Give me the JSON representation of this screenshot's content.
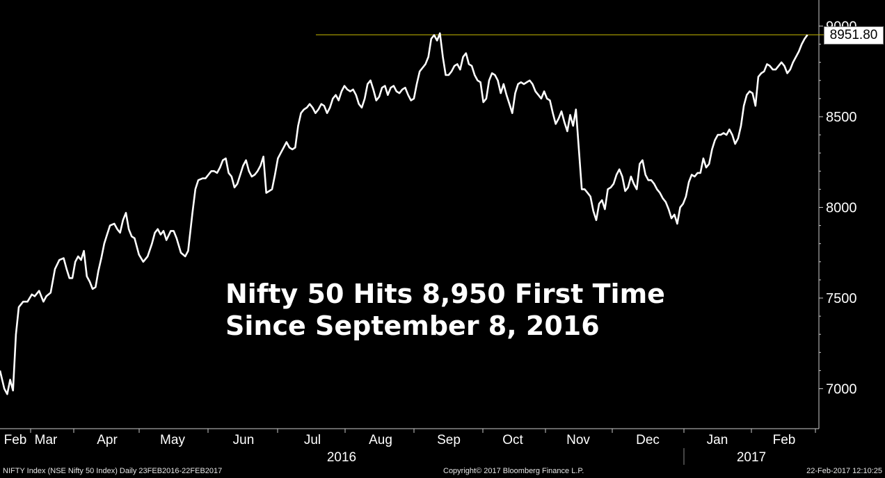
{
  "chart_data": {
    "type": "line",
    "y_ticks": [
      7000,
      7500,
      8000,
      8500,
      9000
    ],
    "ylim": [
      6800,
      9100
    ],
    "x_month_labels": [
      "Feb",
      "Mar",
      "Apr",
      "May",
      "Jun",
      "Jul",
      "Aug",
      "Sep",
      "Oct",
      "Nov",
      "Dec",
      "Jan",
      "Feb"
    ],
    "year_labels": [
      "2016",
      "2017"
    ],
    "last_value_label": "8951.80",
    "reference_line_value": 8951.8,
    "series": [
      {
        "values": [
          [
            0,
            7100
          ],
          [
            0.3,
            7000
          ],
          [
            0.5,
            6970
          ],
          [
            0.7,
            7050
          ],
          [
            0.9,
            6990
          ],
          [
            1.1,
            7300
          ],
          [
            1.3,
            7450
          ],
          [
            1.6,
            7480
          ],
          [
            1.9,
            7480
          ],
          [
            2.2,
            7520
          ],
          [
            2.4,
            7510
          ],
          [
            2.7,
            7540
          ],
          [
            3.0,
            7480
          ],
          [
            3.2,
            7510
          ],
          [
            3.5,
            7530
          ],
          [
            3.8,
            7660
          ],
          [
            4.1,
            7710
          ],
          [
            4.4,
            7720
          ],
          [
            4.6,
            7660
          ],
          [
            4.8,
            7610
          ],
          [
            5.0,
            7610
          ],
          [
            5.2,
            7700
          ],
          [
            5.4,
            7730
          ],
          [
            5.6,
            7710
          ],
          [
            5.8,
            7760
          ],
          [
            6.0,
            7620
          ],
          [
            6.2,
            7590
          ],
          [
            6.4,
            7550
          ],
          [
            6.6,
            7560
          ],
          [
            6.8,
            7650
          ],
          [
            7.0,
            7720
          ],
          [
            7.2,
            7800
          ],
          [
            7.4,
            7850
          ],
          [
            7.6,
            7900
          ],
          [
            7.9,
            7910
          ],
          [
            8.1,
            7880
          ],
          [
            8.3,
            7860
          ],
          [
            8.5,
            7930
          ],
          [
            8.7,
            7970
          ],
          [
            8.9,
            7880
          ],
          [
            9.1,
            7840
          ],
          [
            9.3,
            7830
          ],
          [
            9.6,
            7740
          ],
          [
            9.9,
            7700
          ],
          [
            10.2,
            7730
          ],
          [
            10.5,
            7800
          ],
          [
            10.7,
            7860
          ],
          [
            10.9,
            7880
          ],
          [
            11.1,
            7850
          ],
          [
            11.3,
            7870
          ],
          [
            11.5,
            7820
          ],
          [
            11.8,
            7870
          ],
          [
            12.0,
            7870
          ],
          [
            12.2,
            7830
          ],
          [
            12.5,
            7750
          ],
          [
            12.8,
            7730
          ],
          [
            13.0,
            7760
          ],
          [
            13.3,
            7970
          ],
          [
            13.5,
            8100
          ],
          [
            13.7,
            8150
          ],
          [
            14.0,
            8160
          ],
          [
            14.2,
            8160
          ],
          [
            14.4,
            8180
          ],
          [
            14.6,
            8200
          ],
          [
            14.8,
            8200
          ],
          [
            15.0,
            8190
          ],
          [
            15.2,
            8220
          ],
          [
            15.4,
            8260
          ],
          [
            15.6,
            8270
          ],
          [
            15.8,
            8190
          ],
          [
            16.0,
            8170
          ],
          [
            16.2,
            8110
          ],
          [
            16.4,
            8130
          ],
          [
            16.6,
            8180
          ],
          [
            16.8,
            8230
          ],
          [
            17.0,
            8260
          ],
          [
            17.2,
            8200
          ],
          [
            17.4,
            8170
          ],
          [
            17.6,
            8180
          ],
          [
            17.8,
            8200
          ],
          [
            18.0,
            8230
          ],
          [
            18.2,
            8280
          ],
          [
            18.4,
            8080
          ],
          [
            18.6,
            8090
          ],
          [
            18.8,
            8100
          ],
          [
            19.0,
            8180
          ],
          [
            19.2,
            8270
          ],
          [
            19.4,
            8300
          ],
          [
            19.6,
            8330
          ],
          [
            19.8,
            8360
          ],
          [
            20.0,
            8330
          ],
          [
            20.2,
            8320
          ],
          [
            20.4,
            8330
          ],
          [
            20.6,
            8450
          ],
          [
            20.8,
            8520
          ],
          [
            21.0,
            8540
          ],
          [
            21.2,
            8550
          ],
          [
            21.4,
            8570
          ],
          [
            21.6,
            8550
          ],
          [
            21.8,
            8520
          ],
          [
            22.0,
            8540
          ],
          [
            22.2,
            8570
          ],
          [
            22.4,
            8560
          ],
          [
            22.6,
            8520
          ],
          [
            22.8,
            8550
          ],
          [
            23.0,
            8600
          ],
          [
            23.2,
            8620
          ],
          [
            23.4,
            8590
          ],
          [
            23.6,
            8640
          ],
          [
            23.8,
            8670
          ],
          [
            24.0,
            8650
          ],
          [
            24.2,
            8640
          ],
          [
            24.4,
            8650
          ],
          [
            24.6,
            8620
          ],
          [
            24.8,
            8570
          ],
          [
            25.0,
            8550
          ],
          [
            25.2,
            8600
          ],
          [
            25.4,
            8680
          ],
          [
            25.6,
            8700
          ],
          [
            25.8,
            8650
          ],
          [
            26.0,
            8590
          ],
          [
            26.2,
            8610
          ],
          [
            26.4,
            8660
          ],
          [
            26.6,
            8670
          ],
          [
            26.8,
            8620
          ],
          [
            27.0,
            8660
          ],
          [
            27.2,
            8670
          ],
          [
            27.4,
            8640
          ],
          [
            27.6,
            8630
          ],
          [
            27.8,
            8650
          ],
          [
            28.0,
            8660
          ],
          [
            28.2,
            8620
          ],
          [
            28.4,
            8590
          ],
          [
            28.6,
            8600
          ],
          [
            28.8,
            8680
          ],
          [
            29.0,
            8750
          ],
          [
            29.2,
            8770
          ],
          [
            29.4,
            8790
          ],
          [
            29.6,
            8830
          ],
          [
            29.8,
            8930
          ],
          [
            30.0,
            8950
          ],
          [
            30.2,
            8920
          ],
          [
            30.4,
            8960
          ],
          [
            30.6,
            8830
          ],
          [
            30.8,
            8730
          ],
          [
            31.0,
            8730
          ],
          [
            31.2,
            8750
          ],
          [
            31.4,
            8780
          ],
          [
            31.6,
            8790
          ],
          [
            31.8,
            8760
          ],
          [
            32.0,
            8830
          ],
          [
            32.2,
            8850
          ],
          [
            32.4,
            8790
          ],
          [
            32.6,
            8780
          ],
          [
            32.8,
            8730
          ],
          [
            33.0,
            8700
          ],
          [
            33.2,
            8690
          ],
          [
            33.4,
            8580
          ],
          [
            33.6,
            8600
          ],
          [
            33.8,
            8700
          ],
          [
            34.0,
            8740
          ],
          [
            34.2,
            8730
          ],
          [
            34.4,
            8700
          ],
          [
            34.6,
            8630
          ],
          [
            34.8,
            8680
          ],
          [
            35.0,
            8620
          ],
          [
            35.2,
            8570
          ],
          [
            35.4,
            8520
          ],
          [
            35.6,
            8630
          ],
          [
            35.8,
            8680
          ],
          [
            36.0,
            8690
          ],
          [
            36.2,
            8680
          ],
          [
            36.4,
            8690
          ],
          [
            36.6,
            8700
          ],
          [
            36.8,
            8680
          ],
          [
            37.0,
            8640
          ],
          [
            37.2,
            8620
          ],
          [
            37.4,
            8600
          ],
          [
            37.6,
            8640
          ],
          [
            37.8,
            8600
          ],
          [
            38.0,
            8590
          ],
          [
            38.2,
            8520
          ],
          [
            38.4,
            8460
          ],
          [
            38.6,
            8490
          ],
          [
            38.8,
            8530
          ],
          [
            39.0,
            8470
          ],
          [
            39.2,
            8420
          ],
          [
            39.4,
            8510
          ],
          [
            39.6,
            8450
          ],
          [
            39.8,
            8540
          ],
          [
            40.0,
            8320
          ],
          [
            40.2,
            8100
          ],
          [
            40.4,
            8100
          ],
          [
            40.6,
            8080
          ],
          [
            40.8,
            8060
          ],
          [
            41.0,
            7980
          ],
          [
            41.2,
            7930
          ],
          [
            41.4,
            8020
          ],
          [
            41.6,
            8040
          ],
          [
            41.8,
            7990
          ],
          [
            42.0,
            8100
          ],
          [
            42.2,
            8110
          ],
          [
            42.4,
            8130
          ],
          [
            42.6,
            8180
          ],
          [
            42.8,
            8210
          ],
          [
            43.0,
            8170
          ],
          [
            43.2,
            8090
          ],
          [
            43.4,
            8110
          ],
          [
            43.6,
            8170
          ],
          [
            43.8,
            8130
          ],
          [
            44.0,
            8100
          ],
          [
            44.2,
            8240
          ],
          [
            44.4,
            8260
          ],
          [
            44.6,
            8180
          ],
          [
            44.8,
            8150
          ],
          [
            45.0,
            8150
          ],
          [
            45.2,
            8130
          ],
          [
            45.4,
            8100
          ],
          [
            45.6,
            8080
          ],
          [
            45.8,
            8050
          ],
          [
            46.0,
            8030
          ],
          [
            46.2,
            7990
          ],
          [
            46.4,
            7940
          ],
          [
            46.6,
            7960
          ],
          [
            46.8,
            7910
          ],
          [
            47.0,
            8000
          ],
          [
            47.2,
            8020
          ],
          [
            47.4,
            8060
          ],
          [
            47.6,
            8140
          ],
          [
            47.8,
            8180
          ],
          [
            48.0,
            8170
          ],
          [
            48.2,
            8190
          ],
          [
            48.4,
            8190
          ],
          [
            48.6,
            8270
          ],
          [
            48.8,
            8220
          ],
          [
            49.0,
            8240
          ],
          [
            49.2,
            8320
          ],
          [
            49.4,
            8370
          ],
          [
            49.6,
            8400
          ],
          [
            49.8,
            8400
          ],
          [
            50.0,
            8410
          ],
          [
            50.2,
            8400
          ],
          [
            50.4,
            8430
          ],
          [
            50.6,
            8400
          ],
          [
            50.8,
            8350
          ],
          [
            51.0,
            8380
          ],
          [
            51.2,
            8450
          ],
          [
            51.4,
            8560
          ],
          [
            51.6,
            8620
          ],
          [
            51.8,
            8640
          ],
          [
            52.0,
            8630
          ],
          [
            52.2,
            8560
          ],
          [
            52.4,
            8720
          ],
          [
            52.6,
            8740
          ],
          [
            52.8,
            8750
          ],
          [
            53.0,
            8790
          ],
          [
            53.2,
            8780
          ],
          [
            53.4,
            8760
          ],
          [
            53.6,
            8760
          ],
          [
            53.8,
            8780
          ],
          [
            54.0,
            8800
          ],
          [
            54.2,
            8780
          ],
          [
            54.4,
            8740
          ],
          [
            54.6,
            8760
          ],
          [
            54.8,
            8800
          ],
          [
            55.0,
            8830
          ],
          [
            55.2,
            8860
          ],
          [
            55.4,
            8900
          ],
          [
            55.6,
            8930
          ],
          [
            55.8,
            8951.8
          ]
        ]
      }
    ]
  },
  "headline": {
    "line1": "Nifty 50 Hits 8,950 First Time",
    "line2": "Since September 8, 2016"
  },
  "footer": {
    "left": "NIFTY Index (NSE Nifty 50 Index)  Daily 23FEB2016-22FEB2017",
    "center": "Copyright© 2017 Bloomberg Finance L.P.",
    "right": "22-Feb-2017 12:10:25"
  },
  "colors": {
    "background": "#000000",
    "line": "#ffffff",
    "reference_line": "#b5a800",
    "axis": "#cccccc"
  }
}
